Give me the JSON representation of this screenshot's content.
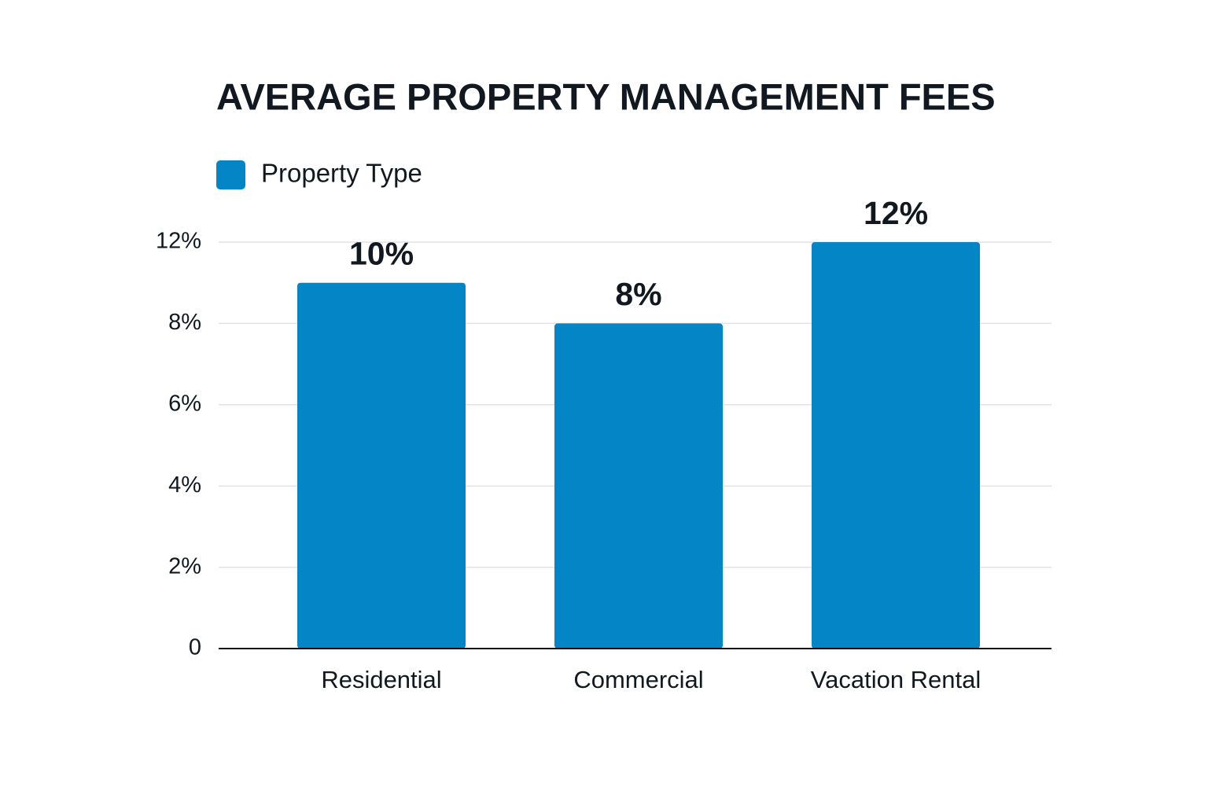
{
  "chart_data": {
    "type": "bar",
    "title": "AVERAGE PROPERTY MANAGEMENT FEES",
    "categories": [
      "Residential",
      "Commercial",
      "Vacation Rental"
    ],
    "series": [
      {
        "name": "Property Type",
        "color": "#0385c6",
        "values": [
          10,
          8,
          12
        ],
        "value_labels": [
          "10%",
          "8%",
          "12%"
        ]
      }
    ],
    "ylim": [
      0,
      12
    ],
    "yticks": [
      0,
      {
        "value": 2,
        "label": "2%"
      },
      {
        "value": 4,
        "label": "4%"
      },
      {
        "value": 6,
        "label": "6%"
      },
      {
        "value": 8,
        "label": "8%"
      },
      {
        "value": 12,
        "label": "12%"
      }
    ],
    "grid": true,
    "legend": "top-left"
  }
}
